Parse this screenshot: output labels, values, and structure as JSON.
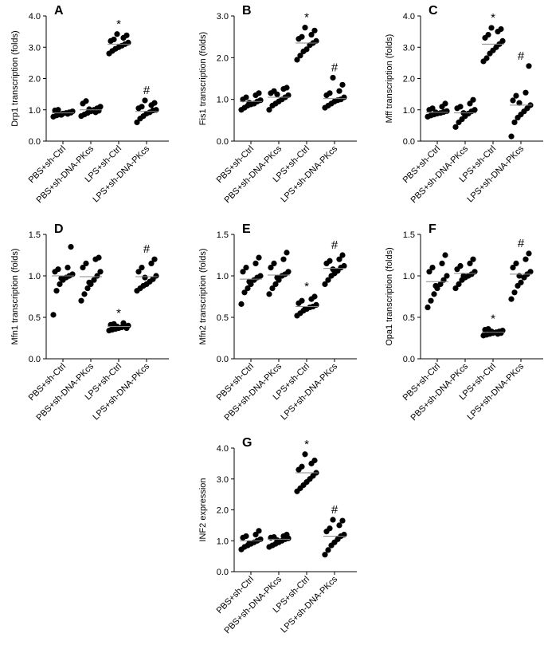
{
  "chart_data": [
    {
      "type": "scatter",
      "panel": "A",
      "ylabel": "Drp1 transcription (folds)",
      "ylim": [
        0,
        4.0
      ],
      "yticks": [
        "0.0",
        "1.0",
        "2.0",
        "3.0",
        "4.0"
      ],
      "categories": [
        "PBS+sh-Ctrl",
        "PBS+sh-DNA-PKcs",
        "LPS+sh-Ctrl",
        "LPS+sh-DNA-PKcs"
      ],
      "markers": [
        "",
        "",
        "*",
        "#"
      ],
      "series": [
        {
          "name": "PBS+sh-Ctrl",
          "values": [
            0.78,
            0.82,
            0.85,
            0.88,
            0.9,
            0.92,
            0.95,
            0.98,
            1.0,
            0.87,
            0.91,
            0.84
          ],
          "mean": 0.9
        },
        {
          "name": "PBS+sh-DNA-PKcs",
          "values": [
            0.8,
            0.85,
            0.9,
            0.95,
            1.0,
            1.05,
            1.1,
            1.2,
            1.28,
            0.92,
            0.97,
            1.02
          ],
          "mean": 1.0
        },
        {
          "name": "LPS+sh-Ctrl",
          "values": [
            2.8,
            2.88,
            2.95,
            3.0,
            3.05,
            3.1,
            3.15,
            3.2,
            3.25,
            3.3,
            3.38,
            3.42
          ],
          "mean": 3.1
        },
        {
          "name": "LPS+sh-DNA-PKcs",
          "values": [
            0.6,
            0.72,
            0.8,
            0.88,
            0.92,
            0.98,
            1.0,
            1.05,
            1.1,
            1.15,
            1.22,
            1.3
          ],
          "mean": 0.95
        }
      ]
    },
    {
      "type": "scatter",
      "panel": "B",
      "ylabel": "Fis1 transcription (folds)",
      "ylim": [
        0,
        3.0
      ],
      "yticks": [
        "0.0",
        "1.0",
        "2.0",
        "3.0"
      ],
      "categories": [
        "PBS+sh-Ctrl",
        "PBS+sh-DNA-PKcs",
        "LPS+sh-Ctrl",
        "LPS+sh-DNA-PKcs"
      ],
      "markers": [
        "",
        "",
        "*",
        "#"
      ],
      "series": [
        {
          "name": "PBS+sh-Ctrl",
          "values": [
            0.75,
            0.8,
            0.85,
            0.88,
            0.9,
            0.95,
            0.98,
            1.0,
            1.05,
            1.1,
            1.15,
            0.92
          ],
          "mean": 0.95
        },
        {
          "name": "PBS+sh-DNA-PKcs",
          "values": [
            0.75,
            0.85,
            0.9,
            0.95,
            1.0,
            1.05,
            1.1,
            1.15,
            1.2,
            1.25,
            1.28,
            1.12
          ],
          "mean": 1.05
        },
        {
          "name": "LPS+sh-Ctrl",
          "values": [
            1.95,
            2.05,
            2.15,
            2.2,
            2.3,
            2.35,
            2.4,
            2.45,
            2.5,
            2.55,
            2.65,
            2.72
          ],
          "mean": 2.35
        },
        {
          "name": "LPS+sh-DNA-PKcs",
          "values": [
            0.8,
            0.85,
            0.9,
            0.95,
            0.98,
            1.0,
            1.05,
            1.1,
            1.15,
            1.2,
            1.35,
            1.52
          ],
          "mean": 1.02
        }
      ]
    },
    {
      "type": "scatter",
      "panel": "C",
      "ylabel": "Mff transcription (folds)",
      "ylim": [
        0,
        4.0
      ],
      "yticks": [
        "0.0",
        "1.0",
        "2.0",
        "3.0",
        "4.0"
      ],
      "categories": [
        "PBS+sh-Ctrl",
        "PBS+sh-DNA-PKcs",
        "LPS+sh-Ctrl",
        "LPS+sh-DNA-PKcs"
      ],
      "markers": [
        "",
        "",
        "*",
        "#"
      ],
      "series": [
        {
          "name": "PBS+sh-Ctrl",
          "values": [
            0.78,
            0.82,
            0.85,
            0.88,
            0.9,
            0.93,
            0.96,
            1.0,
            1.05,
            1.1,
            1.2,
            0.92
          ],
          "mean": 0.92
        },
        {
          "name": "PBS+sh-DNA-PKcs",
          "values": [
            0.45,
            0.6,
            0.7,
            0.8,
            0.88,
            0.95,
            1.0,
            1.05,
            1.1,
            1.2,
            1.32,
            0.9
          ],
          "mean": 0.9
        },
        {
          "name": "LPS+sh-Ctrl",
          "values": [
            2.55,
            2.65,
            2.8,
            2.9,
            3.0,
            3.1,
            3.2,
            3.3,
            3.4,
            3.5,
            3.58,
            3.62
          ],
          "mean": 3.1
        },
        {
          "name": "LPS+sh-DNA-PKcs",
          "values": [
            0.15,
            0.6,
            0.75,
            0.85,
            0.95,
            1.05,
            1.15,
            1.3,
            1.45,
            1.55,
            2.4,
            1.22
          ],
          "mean": 1.15
        }
      ]
    },
    {
      "type": "scatter",
      "panel": "D",
      "ylabel": "Mfn1 transcription (folds)",
      "ylim": [
        0,
        1.5
      ],
      "yticks": [
        "0.0",
        "0.5",
        "1.0",
        "1.5"
      ],
      "categories": [
        "PBS+sh-Ctrl",
        "PBS+sh-DNA-PKcs",
        "LPS+sh-Ctrl",
        "LPS+sh-DNA-PKcs"
      ],
      "markers": [
        "",
        "",
        "*",
        "#"
      ],
      "series": [
        {
          "name": "PBS+sh-Ctrl",
          "values": [
            0.53,
            0.82,
            0.9,
            0.95,
            0.98,
            1.0,
            1.02,
            1.05,
            1.08,
            1.1,
            1.35,
            0.97
          ],
          "mean": 1.0
        },
        {
          "name": "PBS+sh-DNA-PKcs",
          "values": [
            0.7,
            0.78,
            0.85,
            0.9,
            0.95,
            1.0,
            1.05,
            1.1,
            1.15,
            1.2,
            1.22,
            0.92
          ],
          "mean": 0.99
        },
        {
          "name": "LPS+sh-Ctrl",
          "values": [
            0.34,
            0.35,
            0.36,
            0.37,
            0.38,
            0.39,
            0.4,
            0.41,
            0.42,
            0.43,
            0.37,
            0.39
          ],
          "mean": 0.39
        },
        {
          "name": "LPS+sh-DNA-PKcs",
          "values": [
            0.82,
            0.85,
            0.88,
            0.9,
            0.93,
            0.96,
            1.0,
            1.05,
            1.1,
            1.15,
            1.2,
            0.98
          ],
          "mean": 0.99
        }
      ]
    },
    {
      "type": "scatter",
      "panel": "E",
      "ylabel": "Mfn2 transcription (folds)",
      "ylim": [
        0,
        1.5
      ],
      "yticks": [
        "0.0",
        "0.5",
        "1.0",
        "1.5"
      ],
      "categories": [
        "PBS+sh-Ctrl",
        "PBS+sh-DNA-PKcs",
        "LPS+sh-Ctrl",
        "LPS+sh-DNA-PKcs"
      ],
      "markers": [
        "",
        "",
        "*",
        "#"
      ],
      "series": [
        {
          "name": "PBS+sh-Ctrl",
          "values": [
            0.66,
            0.8,
            0.85,
            0.9,
            0.95,
            0.98,
            1.0,
            1.05,
            1.1,
            1.15,
            1.22,
            0.93
          ],
          "mean": 0.96
        },
        {
          "name": "PBS+sh-DNA-PKcs",
          "values": [
            0.78,
            0.85,
            0.9,
            0.95,
            1.0,
            1.02,
            1.05,
            1.1,
            1.15,
            1.2,
            1.28,
            0.98
          ],
          "mean": 1.01
        },
        {
          "name": "LPS+sh-Ctrl",
          "values": [
            0.52,
            0.55,
            0.58,
            0.6,
            0.62,
            0.63,
            0.65,
            0.67,
            0.7,
            0.72,
            0.75,
            0.6
          ],
          "mean": 0.63
        },
        {
          "name": "LPS+sh-DNA-PKcs",
          "values": [
            0.9,
            0.95,
            1.0,
            1.03,
            1.06,
            1.1,
            1.12,
            1.15,
            1.18,
            1.2,
            1.25,
            1.08
          ],
          "mean": 1.09
        }
      ]
    },
    {
      "type": "scatter",
      "panel": "F",
      "ylabel": "Opa1 transcription (folds)",
      "ylim": [
        0,
        1.5
      ],
      "yticks": [
        "0.0",
        "0.5",
        "1.0",
        "1.5"
      ],
      "categories": [
        "PBS+sh-Ctrl",
        "PBS+sh-DNA-PKcs",
        "LPS+sh-Ctrl",
        "LPS+sh-DNA-PKcs"
      ],
      "markers": [
        "",
        "",
        "*",
        "#"
      ],
      "series": [
        {
          "name": "PBS+sh-Ctrl",
          "values": [
            0.62,
            0.7,
            0.78,
            0.85,
            0.9,
            0.95,
            1.0,
            1.05,
            1.1,
            1.15,
            1.25,
            0.88
          ],
          "mean": 0.93
        },
        {
          "name": "PBS+sh-DNA-PKcs",
          "values": [
            0.85,
            0.9,
            0.95,
            0.98,
            1.0,
            1.02,
            1.05,
            1.08,
            1.12,
            1.15,
            1.2,
            1.0
          ],
          "mean": 1.03
        },
        {
          "name": "LPS+sh-Ctrl",
          "values": [
            0.28,
            0.29,
            0.3,
            0.31,
            0.32,
            0.33,
            0.34,
            0.35,
            0.36,
            0.3,
            0.31,
            0.33
          ],
          "mean": 0.32
        },
        {
          "name": "LPS+sh-DNA-PKcs",
          "values": [
            0.72,
            0.8,
            0.88,
            0.92,
            0.98,
            1.02,
            1.05,
            1.1,
            1.15,
            1.2,
            1.27,
            1.0
          ],
          "mean": 1.02
        }
      ]
    },
    {
      "type": "scatter",
      "panel": "G",
      "ylabel": "INF2 expression",
      "ylim": [
        0,
        4.0
      ],
      "yticks": [
        "0.0",
        "1.0",
        "2.0",
        "3.0",
        "4.0"
      ],
      "categories": [
        "PBS+sh-Ctrl",
        "PBS+sh-DNA-PKcs",
        "LPS+sh-Ctrl",
        "LPS+sh-DNA-PKcs"
      ],
      "markers": [
        "",
        "",
        "*",
        "#"
      ],
      "series": [
        {
          "name": "PBS+sh-Ctrl",
          "values": [
            0.72,
            0.8,
            0.85,
            0.9,
            0.95,
            1.0,
            1.05,
            1.1,
            1.15,
            1.2,
            1.32,
            0.92
          ],
          "mean": 1.0
        },
        {
          "name": "PBS+sh-DNA-PKcs",
          "values": [
            0.8,
            0.85,
            0.9,
            0.95,
            1.0,
            1.05,
            1.08,
            1.1,
            1.12,
            1.15,
            1.2,
            1.02
          ],
          "mean": 1.05
        },
        {
          "name": "LPS+sh-Ctrl",
          "values": [
            2.6,
            2.7,
            2.8,
            2.9,
            3.0,
            3.1,
            3.2,
            3.3,
            3.4,
            3.5,
            3.6,
            3.8
          ],
          "mean": 3.2
        },
        {
          "name": "LPS+sh-DNA-PKcs",
          "values": [
            0.55,
            0.7,
            0.85,
            0.95,
            1.05,
            1.15,
            1.2,
            1.3,
            1.4,
            1.5,
            1.65,
            1.68
          ],
          "mean": 1.15
        }
      ]
    }
  ]
}
